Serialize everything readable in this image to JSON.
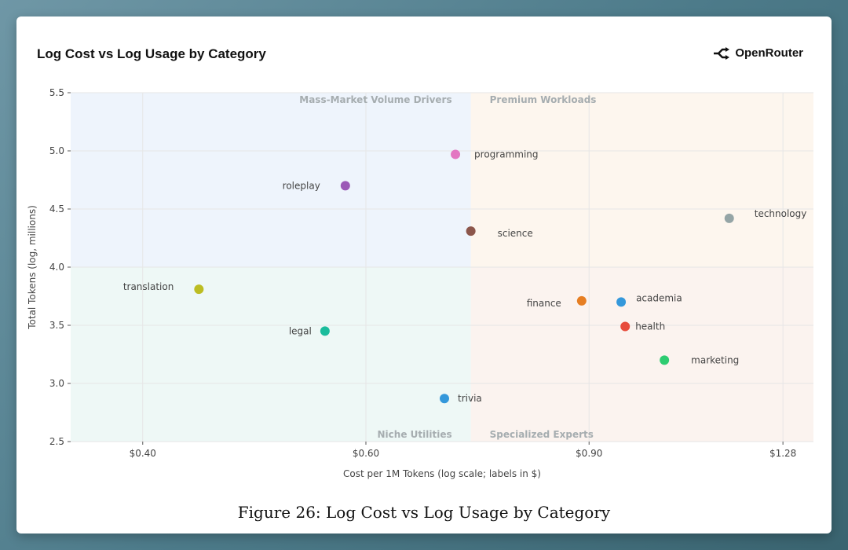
{
  "header": {
    "title": "Log Cost vs Log Usage by Category",
    "brand": "OpenRouter"
  },
  "caption": "Figure 26: Log Cost vs Log Usage by Category",
  "chart_data": {
    "type": "scatter",
    "title": "Log Cost vs Log Usage by Category",
    "xlabel": "Cost per 1M Tokens (log scale; labels in $)",
    "ylabel": "Total Tokens (log, millions)",
    "xscale": "log",
    "xlim": [
      0.35,
      1.4
    ],
    "ylim": [
      2.5,
      5.5
    ],
    "xticks": [
      {
        "value": 0.4,
        "label": "$0.40"
      },
      {
        "value": 0.6,
        "label": "$0.60"
      },
      {
        "value": 0.9,
        "label": "$0.90"
      },
      {
        "value": 1.28,
        "label": "$1.28"
      }
    ],
    "yticks": [
      {
        "value": 2.5,
        "label": "2.5"
      },
      {
        "value": 3.0,
        "label": "3.0"
      },
      {
        "value": 3.5,
        "label": "3.5"
      },
      {
        "value": 4.0,
        "label": "4.0"
      },
      {
        "value": 4.5,
        "label": "4.5"
      },
      {
        "value": 5.0,
        "label": "5.0"
      },
      {
        "value": 5.5,
        "label": "5.5"
      }
    ],
    "grid": true,
    "x_divider": 0.726,
    "y_divider": 4.0,
    "quadrants": [
      {
        "label": "Mass-Market Volume Drivers",
        "position": "top-left",
        "color": "#eef4fc"
      },
      {
        "label": "Premium Workloads",
        "position": "top-right",
        "color": "#fdf6ee"
      },
      {
        "label": "Niche Utilities",
        "position": "bottom-left",
        "color": "#eef8f6"
      },
      {
        "label": "Specialized Experts",
        "position": "bottom-right",
        "color": "#fbf3ef"
      }
    ],
    "points": [
      {
        "name": "programming",
        "x": 0.706,
        "y": 4.97,
        "color": "#e377c2"
      },
      {
        "name": "roleplay",
        "x": 0.578,
        "y": 4.7,
        "color": "#9b59b6"
      },
      {
        "name": "technology",
        "x": 1.161,
        "y": 4.42,
        "color": "#95a5a6"
      },
      {
        "name": "science",
        "x": 0.726,
        "y": 4.31,
        "color": "#8c564b"
      },
      {
        "name": "translation",
        "x": 0.443,
        "y": 3.81,
        "color": "#bcbd22"
      },
      {
        "name": "academia",
        "x": 0.954,
        "y": 3.7,
        "color": "#3498db"
      },
      {
        "name": "finance",
        "x": 0.888,
        "y": 3.71,
        "color": "#e67e22"
      },
      {
        "name": "health",
        "x": 0.961,
        "y": 3.49,
        "color": "#e74c3c"
      },
      {
        "name": "legal",
        "x": 0.557,
        "y": 3.45,
        "color": "#1abc9c"
      },
      {
        "name": "marketing",
        "x": 1.032,
        "y": 3.2,
        "color": "#2ecc71"
      },
      {
        "name": "trivia",
        "x": 0.692,
        "y": 2.87,
        "color": "#3498db"
      }
    ]
  }
}
